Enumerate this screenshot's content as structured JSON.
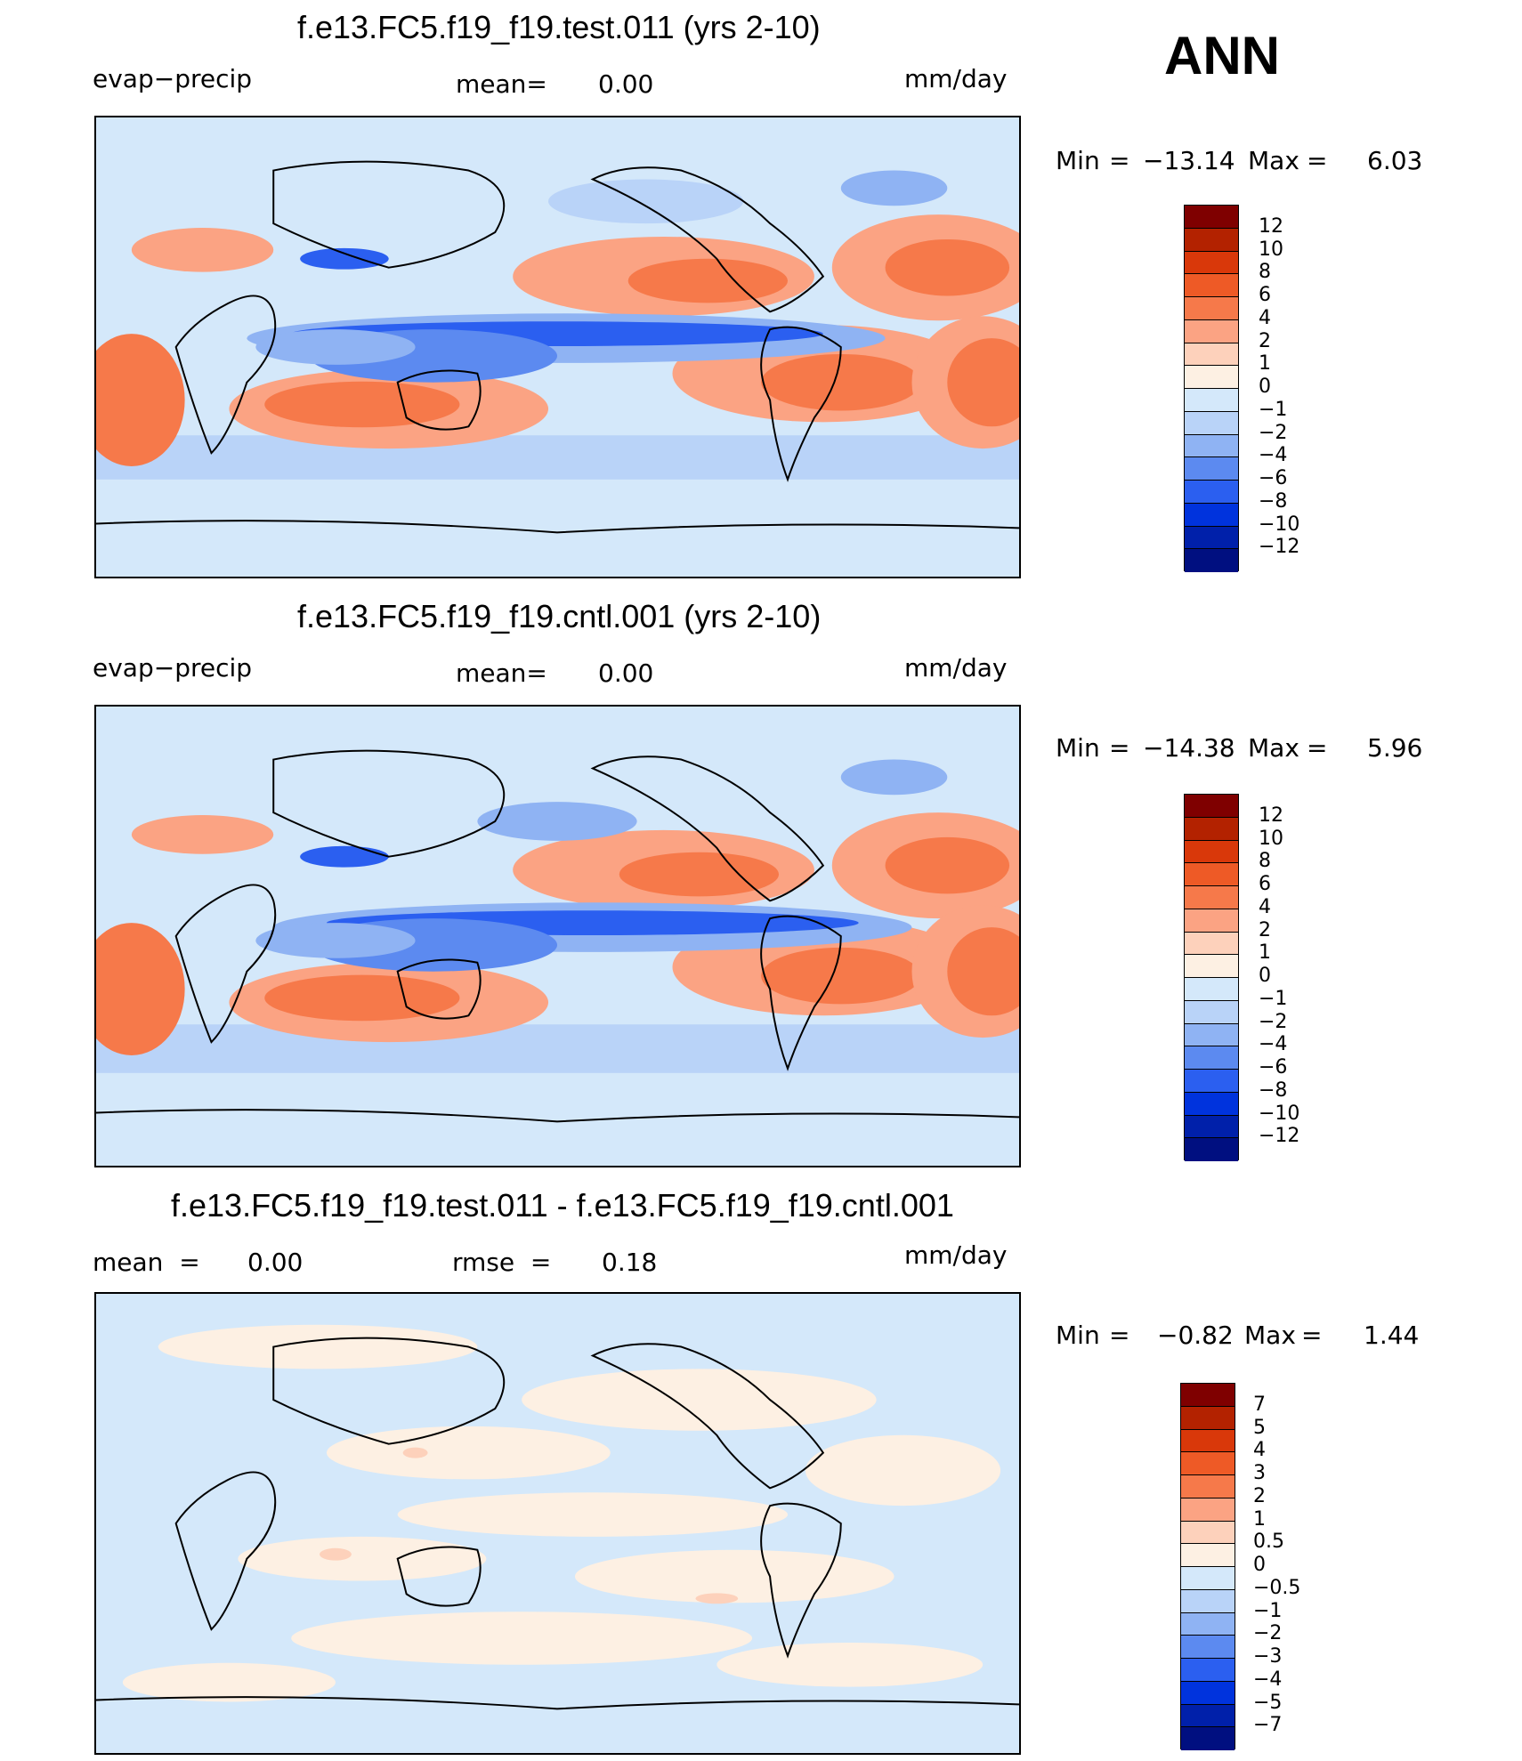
{
  "season": "ANN",
  "panels": [
    {
      "title": "f.e13.FC5.f19_f19.test.011 (yrs 2-10)",
      "left_label": "evap−precip",
      "center_label": "mean=",
      "center_value": "0.00",
      "right_label": "mm/day",
      "min_label": "Min",
      "eq1": "=",
      "min_value": "−13.14",
      "max_label": "Max",
      "eq2": "=",
      "max_value": "6.03",
      "colorbar": [
        "12",
        "10",
        "8",
        "6",
        "4",
        "2",
        "1",
        "0",
        "−1",
        "−2",
        "−4",
        "−6",
        "−8",
        "−10",
        "−12"
      ]
    },
    {
      "title": "f.e13.FC5.f19_f19.cntl.001 (yrs 2-10)",
      "left_label": "evap−precip",
      "center_label": "mean=",
      "center_value": "0.00",
      "right_label": "mm/day",
      "min_label": "Min",
      "eq1": "=",
      "min_value": "−14.38",
      "max_label": "Max",
      "eq2": "=",
      "max_value": "5.96",
      "colorbar": [
        "12",
        "10",
        "8",
        "6",
        "4",
        "2",
        "1",
        "0",
        "−1",
        "−2",
        "−4",
        "−6",
        "−8",
        "−10",
        "−12"
      ]
    },
    {
      "title": "f.e13.FC5.f19_f19.test.011 - f.e13.FC5.f19_f19.cntl.001",
      "left_label": "mean  =",
      "left_value": "0.00",
      "center_label": "rmse  =",
      "center_value": "0.18",
      "right_label": "mm/day",
      "min_label": "Min",
      "eq1": "=",
      "min_value": "−0.82",
      "max_label": "Max",
      "eq2": "=",
      "max_value": "1.44",
      "colorbar": [
        "7",
        "5",
        "4",
        "3",
        "2",
        "1",
        "0.5",
        "0",
        "−0.5",
        "−1",
        "−2",
        "−3",
        "−4",
        "−5",
        "−7"
      ]
    }
  ],
  "colors": {
    "main_scale": [
      "#7f0000",
      "#b32200",
      "#d9380a",
      "#ee5a26",
      "#f6794a",
      "#fba383",
      "#fdd1bb",
      "#fdf0e3",
      "#d4e8fa",
      "#b9d3f8",
      "#8fb3f3",
      "#5c8af0",
      "#2b5ff0",
      "#0033dd",
      "#0020aa",
      "#000f80"
    ],
    "diff_scale": [
      "#7f0000",
      "#b32200",
      "#d9380a",
      "#ee5a26",
      "#f6794a",
      "#fba383",
      "#fdd1bb",
      "#fdf0e3",
      "#d4e8fa",
      "#b9d3f8",
      "#8fb3f3",
      "#5c8af0",
      "#2b5ff0",
      "#0033dd",
      "#0020aa",
      "#000f80"
    ]
  }
}
